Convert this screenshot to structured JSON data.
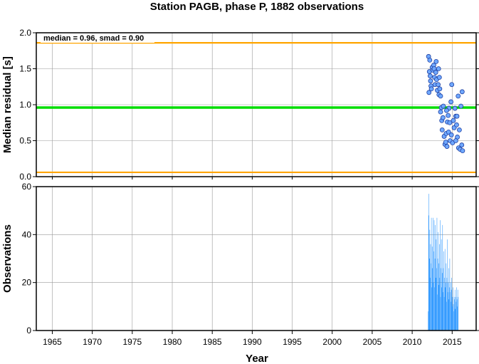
{
  "chart_data": [
    {
      "type": "scatter",
      "title": "Station PAGB, phase P, 1882 observations",
      "xlabel": "",
      "ylabel": "Median residual [s]",
      "xlim": [
        1963,
        2018
      ],
      "ylim": [
        0.0,
        2.0
      ],
      "yticks": [
        0.0,
        0.5,
        1.0,
        1.5,
        2.0
      ],
      "ytick_labels": [
        "0.0",
        "0.5",
        "1.0",
        "1.5",
        "2.0"
      ],
      "grid": true,
      "annotation": "median = 0.96, smad = 0.90",
      "hlines": [
        {
          "y": 1.86,
          "color": "#FFA500"
        },
        {
          "y": 0.96,
          "color": "#00DD00"
        },
        {
          "y": 0.06,
          "color": "#FFA500"
        }
      ],
      "point_color": "#6FA8FF",
      "points": [
        [
          2012.05,
          1.67
        ],
        [
          2012.15,
          1.46
        ],
        [
          2012.2,
          1.62
        ],
        [
          2012.25,
          1.4
        ],
        [
          2012.3,
          1.33
        ],
        [
          2012.35,
          1.26
        ],
        [
          2012.1,
          1.17
        ],
        [
          2012.4,
          1.22
        ],
        [
          2012.5,
          1.52
        ],
        [
          2012.6,
          1.48
        ],
        [
          2012.7,
          1.55
        ],
        [
          2012.75,
          1.5
        ],
        [
          2012.8,
          1.38
        ],
        [
          2012.85,
          1.28
        ],
        [
          2012.95,
          1.45
        ],
        [
          2013.0,
          1.6
        ],
        [
          2013.05,
          1.35
        ],
        [
          2013.15,
          1.2
        ],
        [
          2013.25,
          1.28
        ],
        [
          2013.35,
          1.14
        ],
        [
          2013.3,
          1.5
        ],
        [
          2013.4,
          1.38
        ],
        [
          2013.45,
          1.22
        ],
        [
          2013.55,
          1.12
        ],
        [
          2013.55,
          0.9
        ],
        [
          2013.65,
          0.96
        ],
        [
          2013.7,
          0.78
        ],
        [
          2013.75,
          0.65
        ],
        [
          2013.85,
          0.82
        ],
        [
          2013.9,
          0.98
        ],
        [
          2014.0,
          0.56
        ],
        [
          2014.1,
          0.45
        ],
        [
          2014.2,
          0.48
        ],
        [
          2014.25,
          0.6
        ],
        [
          2014.35,
          0.42
        ],
        [
          2014.4,
          0.76
        ],
        [
          2014.5,
          0.85
        ],
        [
          2014.55,
          0.62
        ],
        [
          2014.6,
          0.95
        ],
        [
          2014.7,
          0.75
        ],
        [
          2014.75,
          0.5
        ],
        [
          2014.85,
          1.04
        ],
        [
          2014.9,
          0.58
        ],
        [
          2014.95,
          1.28
        ],
        [
          2015.05,
          0.47
        ],
        [
          2015.15,
          0.78
        ],
        [
          2015.25,
          0.68
        ],
        [
          2015.35,
          0.95
        ],
        [
          2015.45,
          0.84
        ],
        [
          2015.55,
          0.72
        ],
        [
          2015.6,
          0.84
        ],
        [
          2015.65,
          0.55
        ],
        [
          2015.75,
          1.12
        ],
        [
          2015.8,
          0.4
        ],
        [
          2015.9,
          0.65
        ],
        [
          2016.0,
          0.38
        ],
        [
          2016.1,
          0.98
        ],
        [
          2016.2,
          0.44
        ],
        [
          2016.25,
          1.18
        ],
        [
          2016.3,
          0.36
        ],
        [
          2015.45,
          0.5
        ],
        [
          2014.3,
          0.92
        ]
      ]
    },
    {
      "type": "bar",
      "xlabel": "Year",
      "ylabel": "Observations",
      "xlim": [
        1963,
        2018
      ],
      "ylim": [
        0,
        60
      ],
      "yticks": [
        0,
        20,
        40,
        60
      ],
      "ytick_labels": [
        "0",
        "20",
        "40",
        "60"
      ],
      "xticks": [
        1965,
        1970,
        1975,
        1980,
        1985,
        1990,
        1995,
        2000,
        2005,
        2010,
        2015
      ],
      "xtick_labels": [
        "1965",
        "1970",
        "1975",
        "1980",
        "1985",
        "1990",
        "1995",
        "2000",
        "2005",
        "2010",
        "2015"
      ],
      "grid": true,
      "bar_color": "#1E90FF",
      "x_start": 2012.0,
      "x_step": 0.05,
      "values": [
        8,
        48,
        57,
        30,
        42,
        22,
        36,
        28,
        47,
        18,
        35,
        26,
        47,
        20,
        33,
        46,
        18,
        30,
        44,
        22,
        38,
        26,
        47,
        15,
        30,
        41,
        19,
        28,
        36,
        22,
        46,
        14,
        26,
        38,
        18,
        24,
        44,
        16,
        26,
        33,
        14,
        22,
        34,
        18,
        20,
        28,
        12,
        22,
        38,
        16,
        20,
        26,
        13,
        18,
        30,
        16,
        20,
        12,
        17,
        22,
        10,
        14,
        18,
        11,
        8,
        14,
        13,
        17,
        9,
        14,
        12,
        18,
        13,
        10,
        17,
        14
      ]
    }
  ]
}
